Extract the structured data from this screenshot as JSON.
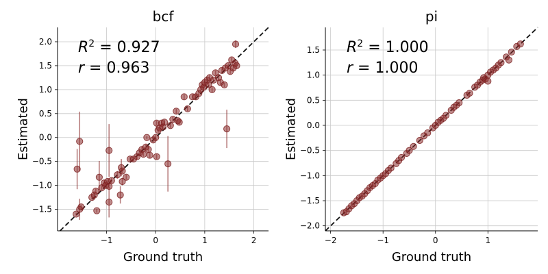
{
  "chart_data": [
    {
      "type": "scatter",
      "title": "bcf",
      "xlabel": "Ground truth",
      "ylabel": "Estimated",
      "xlim": [
        -2.0,
        2.3
      ],
      "ylim": [
        -1.95,
        2.3
      ],
      "xticks": [
        -1,
        0,
        1,
        2
      ],
      "xtick_labels": [
        "−1",
        "0",
        "1",
        "2"
      ],
      "yticks": [
        -1.5,
        -1.0,
        -0.5,
        0.0,
        0.5,
        1.0,
        1.5,
        2.0
      ],
      "ytick_labels": [
        "−1.5",
        "−1.0",
        "−0.5",
        "0.0",
        "0.5",
        "1.0",
        "1.5",
        "2.0"
      ],
      "grid": true,
      "identity_line": true,
      "annotations": {
        "r2_label": "R",
        "r2_sup": "2",
        "r2_value": " = 0.927",
        "r_label": "r",
        "r_value": " = 0.963"
      },
      "points": [
        {
          "x": -1.62,
          "y": -1.6,
          "e": 0.03
        },
        {
          "x": -1.55,
          "y": -1.5,
          "e": 0.22
        },
        {
          "x": -1.52,
          "y": -1.45,
          "e": 0.05
        },
        {
          "x": -1.6,
          "y": -0.66,
          "e": 0.42
        },
        {
          "x": -1.55,
          "y": -0.08,
          "e": 0.62
        },
        {
          "x": -1.3,
          "y": -1.25,
          "e": 0.04
        },
        {
          "x": -1.25,
          "y": -1.2,
          "e": 0.05
        },
        {
          "x": -1.22,
          "y": -1.12,
          "e": 0.05
        },
        {
          "x": -1.2,
          "y": -1.53,
          "e": 0.04
        },
        {
          "x": -1.15,
          "y": -0.83,
          "e": 0.34
        },
        {
          "x": -1.1,
          "y": -1.05,
          "e": 0.04
        },
        {
          "x": -1.05,
          "y": -0.95,
          "e": 0.06
        },
        {
          "x": -1.02,
          "y": -1.0,
          "e": 0.04
        },
        {
          "x": -0.98,
          "y": -0.92,
          "e": 0.05
        },
        {
          "x": -0.95,
          "y": -1.35,
          "e": 0.32
        },
        {
          "x": -0.95,
          "y": -1.02,
          "e": 0.05
        },
        {
          "x": -0.95,
          "y": -0.27,
          "e": 0.55
        },
        {
          "x": -0.9,
          "y": -0.9,
          "e": 0.05
        },
        {
          "x": -0.78,
          "y": -0.78,
          "e": 0.08
        },
        {
          "x": -0.72,
          "y": -1.2,
          "e": 0.18
        },
        {
          "x": -0.7,
          "y": -0.63,
          "e": 0.18
        },
        {
          "x": -0.68,
          "y": -0.7,
          "e": 0.05
        },
        {
          "x": -0.68,
          "y": -0.92,
          "e": 0.08
        },
        {
          "x": -0.6,
          "y": -0.83,
          "e": 0.05
        },
        {
          "x": -0.52,
          "y": -0.45,
          "e": 0.05
        },
        {
          "x": -0.45,
          "y": -0.45,
          "e": 0.05
        },
        {
          "x": -0.38,
          "y": -0.4,
          "e": 0.05
        },
        {
          "x": -0.33,
          "y": -0.32,
          "e": 0.05
        },
        {
          "x": -0.28,
          "y": -0.25,
          "e": 0.05
        },
        {
          "x": -0.25,
          "y": -0.35,
          "e": 0.05
        },
        {
          "x": -0.2,
          "y": -0.2,
          "e": 0.05
        },
        {
          "x": -0.18,
          "y": 0.0,
          "e": 0.03
        },
        {
          "x": -0.15,
          "y": -0.25,
          "e": 0.05
        },
        {
          "x": -0.12,
          "y": -0.37,
          "e": 0.05
        },
        {
          "x": -0.05,
          "y": -0.05,
          "e": 0.05
        },
        {
          "x": 0.0,
          "y": 0.0,
          "e": 0.05
        },
        {
          "x": 0.02,
          "y": 0.3,
          "e": 0.05
        },
        {
          "x": 0.02,
          "y": -0.4,
          "e": 0.05
        },
        {
          "x": 0.05,
          "y": 0.15,
          "e": 0.05
        },
        {
          "x": 0.08,
          "y": 0.2,
          "e": 0.05
        },
        {
          "x": 0.12,
          "y": 0.3,
          "e": 0.05
        },
        {
          "x": 0.15,
          "y": 0.22,
          "e": 0.05
        },
        {
          "x": 0.18,
          "y": 0.32,
          "e": 0.05
        },
        {
          "x": 0.25,
          "y": -0.55,
          "e": 0.58
        },
        {
          "x": 0.3,
          "y": 0.25,
          "e": 0.05
        },
        {
          "x": 0.35,
          "y": 0.38,
          "e": 0.05
        },
        {
          "x": 0.42,
          "y": 0.55,
          "e": 0.05
        },
        {
          "x": 0.45,
          "y": 0.35,
          "e": 0.05
        },
        {
          "x": 0.48,
          "y": 0.32,
          "e": 0.05
        },
        {
          "x": 0.58,
          "y": 0.85,
          "e": 0.05
        },
        {
          "x": 0.65,
          "y": 0.6,
          "e": 0.05
        },
        {
          "x": 0.75,
          "y": 0.85,
          "e": 0.05
        },
        {
          "x": 0.82,
          "y": 0.85,
          "e": 0.05
        },
        {
          "x": 0.88,
          "y": 0.92,
          "e": 0.05
        },
        {
          "x": 0.92,
          "y": 1.0,
          "e": 0.05
        },
        {
          "x": 0.95,
          "y": 1.1,
          "e": 0.05
        },
        {
          "x": 0.98,
          "y": 1.05,
          "e": 0.05
        },
        {
          "x": 1.0,
          "y": 1.15,
          "e": 0.05
        },
        {
          "x": 1.05,
          "y": 1.2,
          "e": 0.05
        },
        {
          "x": 1.08,
          "y": 1.1,
          "e": 0.05
        },
        {
          "x": 1.1,
          "y": 1.25,
          "e": 0.05
        },
        {
          "x": 1.15,
          "y": 1.0,
          "e": 0.05
        },
        {
          "x": 1.18,
          "y": 1.2,
          "e": 0.05
        },
        {
          "x": 1.22,
          "y": 1.35,
          "e": 0.05
        },
        {
          "x": 1.28,
          "y": 1.25,
          "e": 0.05
        },
        {
          "x": 1.32,
          "y": 1.15,
          "e": 0.05
        },
        {
          "x": 1.35,
          "y": 1.4,
          "e": 0.05
        },
        {
          "x": 1.4,
          "y": 1.1,
          "e": 0.05
        },
        {
          "x": 1.42,
          "y": 1.45,
          "e": 0.05
        },
        {
          "x": 1.45,
          "y": 0.18,
          "e": 0.4
        },
        {
          "x": 1.48,
          "y": 1.5,
          "e": 0.05
        },
        {
          "x": 1.52,
          "y": 1.38,
          "e": 0.05
        },
        {
          "x": 1.55,
          "y": 1.62,
          "e": 0.05
        },
        {
          "x": 1.58,
          "y": 1.45,
          "e": 0.05
        },
        {
          "x": 1.62,
          "y": 1.55,
          "e": 0.05
        },
        {
          "x": 1.63,
          "y": 1.95,
          "e": 0.08
        },
        {
          "x": 1.65,
          "y": 1.5,
          "e": 0.05
        }
      ]
    },
    {
      "type": "scatter",
      "title": "pi",
      "xlabel": "Ground truth",
      "ylabel": "Estimated",
      "xlim": [
        -2.1,
        1.95
      ],
      "ylim": [
        -2.1,
        1.95
      ],
      "xticks": [
        -2,
        -1,
        0,
        1
      ],
      "xtick_labels": [
        "−2",
        "−1",
        "0",
        "1"
      ],
      "yticks": [
        -2.0,
        -1.5,
        -1.0,
        -0.5,
        0.0,
        0.5,
        1.0,
        1.5
      ],
      "ytick_labels": [
        "−2.0",
        "−1.5",
        "−1.0",
        "−0.5",
        "0.0",
        "0.5",
        "1.0",
        "1.5"
      ],
      "grid": true,
      "identity_line": true,
      "annotations": {
        "r2_label": "R",
        "r2_sup": "2",
        "r2_value": " = 1.000",
        "r_label": "r",
        "r_value": " = 1.000"
      },
      "points": [
        {
          "x": -1.75,
          "y": -1.74
        },
        {
          "x": -1.7,
          "y": -1.72
        },
        {
          "x": -1.65,
          "y": -1.66
        },
        {
          "x": -1.6,
          "y": -1.6
        },
        {
          "x": -1.55,
          "y": -1.56
        },
        {
          "x": -1.5,
          "y": -1.5
        },
        {
          "x": -1.45,
          "y": -1.44
        },
        {
          "x": -1.4,
          "y": -1.41
        },
        {
          "x": -1.35,
          "y": -1.36
        },
        {
          "x": -1.3,
          "y": -1.3
        },
        {
          "x": -1.25,
          "y": -1.24
        },
        {
          "x": -1.2,
          "y": -1.2
        },
        {
          "x": -1.15,
          "y": -1.16
        },
        {
          "x": -1.1,
          "y": -1.09
        },
        {
          "x": -1.05,
          "y": -1.05
        },
        {
          "x": -1.0,
          "y": -1.0
        },
        {
          "x": -0.95,
          "y": -0.96
        },
        {
          "x": -0.9,
          "y": -0.9
        },
        {
          "x": -0.85,
          "y": -0.85
        },
        {
          "x": -0.75,
          "y": -0.76
        },
        {
          "x": -0.7,
          "y": -0.7
        },
        {
          "x": -0.65,
          "y": -0.64
        },
        {
          "x": -0.55,
          "y": -0.56
        },
        {
          "x": -0.5,
          "y": -0.5
        },
        {
          "x": -0.42,
          "y": -0.42
        },
        {
          "x": -0.3,
          "y": -0.3
        },
        {
          "x": -0.22,
          "y": -0.21
        },
        {
          "x": -0.15,
          "y": -0.15
        },
        {
          "x": -0.05,
          "y": -0.05
        },
        {
          "x": 0.0,
          "y": 0.0
        },
        {
          "x": 0.05,
          "y": 0.06
        },
        {
          "x": 0.1,
          "y": 0.1
        },
        {
          "x": 0.15,
          "y": 0.14
        },
        {
          "x": 0.2,
          "y": 0.2
        },
        {
          "x": 0.3,
          "y": 0.3
        },
        {
          "x": 0.35,
          "y": 0.36
        },
        {
          "x": 0.4,
          "y": 0.4
        },
        {
          "x": 0.45,
          "y": 0.45
        },
        {
          "x": 0.6,
          "y": 0.6
        },
        {
          "x": 0.65,
          "y": 0.64
        },
        {
          "x": 0.75,
          "y": 0.76
        },
        {
          "x": 0.8,
          "y": 0.8
        },
        {
          "x": 0.85,
          "y": 0.86
        },
        {
          "x": 0.9,
          "y": 0.9
        },
        {
          "x": 0.92,
          "y": 0.95
        },
        {
          "x": 0.95,
          "y": 0.92
        },
        {
          "x": 1.0,
          "y": 1.0
        },
        {
          "x": 1.0,
          "y": 0.88
        },
        {
          "x": 1.05,
          "y": 1.06
        },
        {
          "x": 1.1,
          "y": 1.1
        },
        {
          "x": 1.15,
          "y": 1.14
        },
        {
          "x": 1.2,
          "y": 1.2
        },
        {
          "x": 1.25,
          "y": 1.25
        },
        {
          "x": 1.35,
          "y": 1.36
        },
        {
          "x": 1.4,
          "y": 1.3
        },
        {
          "x": 1.45,
          "y": 1.46
        },
        {
          "x": 1.55,
          "y": 1.57
        },
        {
          "x": 1.62,
          "y": 1.62
        }
      ]
    }
  ]
}
